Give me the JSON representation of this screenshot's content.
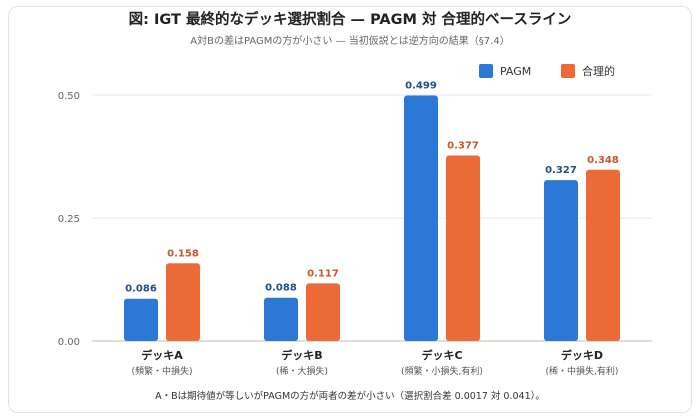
{
  "chart_data": {
    "type": "bar",
    "title": "図: IGT 最終的なデッキ選択割合 — PAGM 対 合理的ベースライン",
    "subtitle": "A対Bの差はPAGMの方が小さい — 当初仮説とは逆方向の結果（§7.4）",
    "categories": [
      "デッキA",
      "デッキB",
      "デッキC",
      "デッキD"
    ],
    "category_notes": [
      "(頻繁・中損失)",
      "(稀・大損失)",
      "(頻繁・小損失,有利)",
      "(稀・中損失,有利)"
    ],
    "series": [
      {
        "name": "PAGM",
        "color": "#2B78D6",
        "label_color": "#1F4E8C",
        "values": [
          0.086,
          0.088,
          0.499,
          0.327
        ]
      },
      {
        "name": "合理的",
        "color": "#EC6A36",
        "label_color": "#C9552A",
        "values": [
          0.158,
          0.117,
          0.377,
          0.348
        ]
      }
    ],
    "y_ticks": [
      "0.00",
      "0.25",
      "0.50"
    ],
    "ylim": [
      0,
      0.5
    ],
    "grid": true,
    "legend_position": "top-right",
    "footnote": "A・Bは期待値が等しいがPAGMの方が両者の差が小さい（選択割合差 0.0017 対 0.041）。"
  }
}
